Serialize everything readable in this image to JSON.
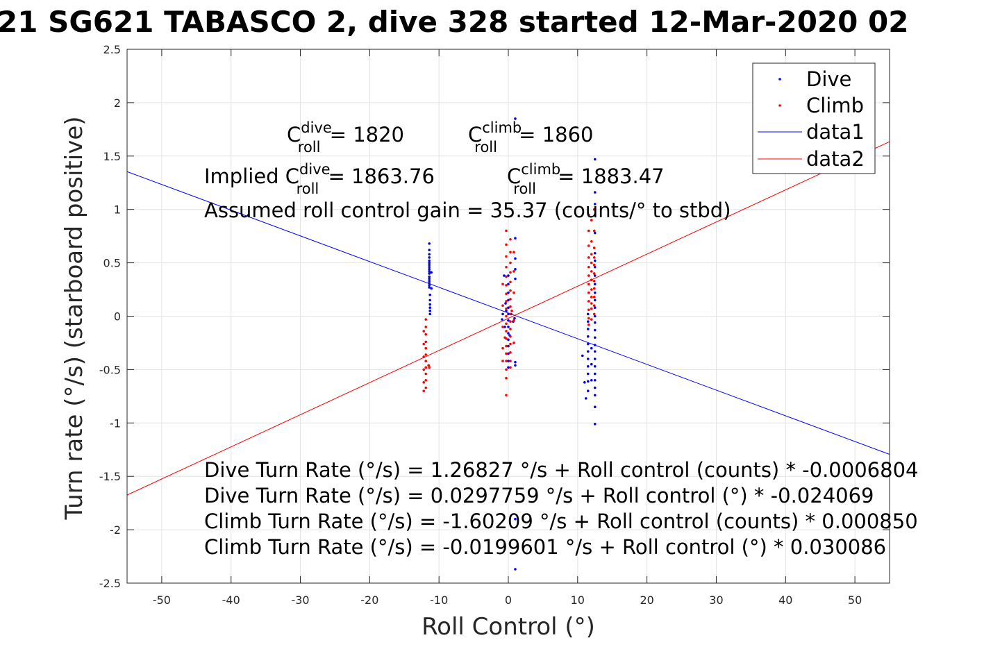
{
  "chart_data": {
    "type": "scatter",
    "title": "21 SG621 TABASCO 2, dive 328 started 12-Mar-2020 02",
    "xlabel": "Roll Control (°)",
    "ylabel": "Turn rate (°/s) (starboard positive)",
    "xlim": [
      -55,
      55
    ],
    "ylim": [
      -2.5,
      2.5
    ],
    "xticks": [
      -50,
      -40,
      -30,
      -20,
      -10,
      0,
      10,
      20,
      30,
      40,
      50
    ],
    "yticks": [
      -2.5,
      -2,
      -1.5,
      -1,
      -0.5,
      0,
      0.5,
      1,
      1.5,
      2,
      2.5
    ],
    "xtick_labels": [
      "-50",
      "-40",
      "-30",
      "-20",
      "-10",
      "0",
      "10",
      "20",
      "30",
      "40",
      "50"
    ],
    "ytick_labels": [
      "-2.5",
      "-2",
      "-1.5",
      "-1",
      "-0.5",
      "0",
      "0.5",
      "1",
      "1.5",
      "2",
      "2.5"
    ],
    "grid": true,
    "legend_position": "top-right",
    "series": [
      {
        "name": "Dive",
        "kind": "points",
        "color": "#0000ff",
        "points": [
          [
            -11.4,
            0.68
          ],
          [
            -11.4,
            0.62
          ],
          [
            -11.4,
            0.58
          ],
          [
            -11.4,
            0.55
          ],
          [
            -11.4,
            0.52
          ],
          [
            -11.4,
            0.5
          ],
          [
            -11.4,
            0.48
          ],
          [
            -11.4,
            0.46
          ],
          [
            -11.4,
            0.44
          ],
          [
            -11.4,
            0.42
          ],
          [
            -11.4,
            0.4
          ],
          [
            -11.4,
            0.37
          ],
          [
            -11.4,
            0.35
          ],
          [
            -11.4,
            0.33
          ],
          [
            -11.4,
            0.31
          ],
          [
            -11.4,
            0.29
          ],
          [
            -11.4,
            0.27
          ],
          [
            -11.1,
            0.41
          ],
          [
            -11.1,
            0.26
          ],
          [
            -11.3,
            0.2
          ],
          [
            -11.3,
            0.15
          ],
          [
            -11.3,
            0.11
          ],
          [
            -11.3,
            0.08
          ],
          [
            -11.3,
            0.05
          ],
          [
            -11.3,
            0.02
          ],
          [
            0.0,
            0.38
          ],
          [
            0.0,
            0.3
          ],
          [
            0.0,
            0.22
          ],
          [
            0.0,
            0.15
          ],
          [
            0.0,
            0.08
          ],
          [
            0.0,
            0.02
          ],
          [
            0.0,
            -0.04
          ],
          [
            0.0,
            -0.1
          ],
          [
            0.0,
            -0.16
          ],
          [
            0.0,
            -0.22
          ],
          [
            0.0,
            -0.28
          ],
          [
            0.0,
            -0.35
          ],
          [
            0.0,
            -0.42
          ],
          [
            0.0,
            -0.48
          ],
          [
            -0.6,
            0.38
          ],
          [
            -0.4,
            0.12
          ],
          [
            -0.8,
            0.02
          ],
          [
            -0.9,
            -0.03
          ],
          [
            -0.5,
            -0.1
          ],
          [
            -0.3,
            0.05
          ],
          [
            0.4,
            0.02
          ],
          [
            0.7,
            -0.05
          ],
          [
            0.2,
            -0.18
          ],
          [
            1.0,
            1.85
          ],
          [
            1.0,
            0.73
          ],
          [
            1.0,
            0.54
          ],
          [
            1.0,
            0.44
          ],
          [
            1.0,
            0.35
          ],
          [
            0.9,
            -0.02
          ],
          [
            1.0,
            -0.43
          ],
          [
            1.0,
            -0.46
          ],
          [
            1.0,
            -1.9
          ],
          [
            1.0,
            -2.37
          ],
          [
            12.5,
            1.47
          ],
          [
            12.5,
            1.16
          ],
          [
            12.5,
            1.05
          ],
          [
            12.5,
            0.95
          ],
          [
            12.5,
            0.78
          ],
          [
            12.5,
            0.59
          ],
          [
            12.5,
            0.52
          ],
          [
            12.5,
            0.46
          ],
          [
            12.5,
            0.38
          ],
          [
            12.5,
            0.3
          ],
          [
            12.5,
            0.22
          ],
          [
            12.5,
            0.15
          ],
          [
            12.5,
            0.08
          ],
          [
            12.5,
            0.0
          ],
          [
            12.5,
            -0.06
          ],
          [
            12.5,
            -0.13
          ],
          [
            12.5,
            -0.2
          ],
          [
            12.5,
            -0.27
          ],
          [
            12.5,
            -0.33
          ],
          [
            12.5,
            -0.4
          ],
          [
            12.5,
            -0.47
          ],
          [
            12.5,
            -0.54
          ],
          [
            12.5,
            -0.6
          ],
          [
            12.5,
            -0.67
          ],
          [
            12.5,
            -0.74
          ],
          [
            12.5,
            -0.85
          ],
          [
            12.5,
            -1.01
          ],
          [
            11.5,
            0.02
          ],
          [
            11.5,
            -0.05
          ],
          [
            11.5,
            -0.12
          ],
          [
            11.5,
            -0.19
          ],
          [
            11.5,
            -0.26
          ],
          [
            11.5,
            -0.33
          ],
          [
            11.5,
            -0.4
          ],
          [
            11.5,
            -0.47
          ],
          [
            11.5,
            -0.54
          ],
          [
            11.5,
            -0.61
          ],
          [
            11.5,
            -0.7
          ],
          [
            12.0,
            -0.3
          ],
          [
            12.0,
            -0.45
          ],
          [
            12.0,
            -0.6
          ],
          [
            10.7,
            -0.37
          ],
          [
            11.0,
            -0.62
          ],
          [
            11.2,
            -0.77
          ]
        ]
      },
      {
        "name": "Climb",
        "kind": "points",
        "color": "#ff0000",
        "points": [
          [
            -11.9,
            -0.03
          ],
          [
            -11.9,
            -0.1
          ],
          [
            -11.9,
            -0.17
          ],
          [
            -11.9,
            -0.24
          ],
          [
            -11.9,
            -0.3
          ],
          [
            -11.9,
            -0.36
          ],
          [
            -11.9,
            -0.42
          ],
          [
            -11.9,
            -0.48
          ],
          [
            -11.9,
            -0.54
          ],
          [
            -11.9,
            -0.6
          ],
          [
            -11.9,
            -0.67
          ],
          [
            -12.2,
            -0.14
          ],
          [
            -12.2,
            -0.26
          ],
          [
            -12.2,
            -0.38
          ],
          [
            -12.2,
            -0.5
          ],
          [
            -12.2,
            -0.62
          ],
          [
            -12.2,
            -0.7
          ],
          [
            -11.5,
            -0.46
          ],
          [
            -11.4,
            -0.48
          ],
          [
            -0.3,
            0.8
          ],
          [
            -0.3,
            0.67
          ],
          [
            -0.3,
            0.56
          ],
          [
            -0.3,
            0.46
          ],
          [
            -0.3,
            0.37
          ],
          [
            -0.3,
            0.29
          ],
          [
            -0.3,
            0.21
          ],
          [
            -0.3,
            0.14
          ],
          [
            -0.3,
            0.07
          ],
          [
            -0.3,
            0.0
          ],
          [
            -0.3,
            -0.07
          ],
          [
            -0.3,
            -0.14
          ],
          [
            -0.3,
            -0.21
          ],
          [
            -0.3,
            -0.28
          ],
          [
            -0.3,
            -0.35
          ],
          [
            -0.3,
            -0.42
          ],
          [
            -0.3,
            -0.5
          ],
          [
            -0.3,
            -0.58
          ],
          [
            -0.3,
            -0.74
          ],
          [
            0.3,
            0.72
          ],
          [
            0.3,
            0.6
          ],
          [
            0.3,
            0.5
          ],
          [
            0.3,
            0.41
          ],
          [
            0.3,
            0.32
          ],
          [
            0.3,
            0.24
          ],
          [
            0.3,
            0.16
          ],
          [
            0.3,
            0.09
          ],
          [
            0.3,
            0.02
          ],
          [
            0.3,
            -0.05
          ],
          [
            0.3,
            -0.12
          ],
          [
            0.3,
            -0.19
          ],
          [
            0.3,
            -0.26
          ],
          [
            0.3,
            -0.34
          ],
          [
            0.3,
            -0.42
          ],
          [
            0.3,
            -0.48
          ],
          [
            -0.8,
            0.3
          ],
          [
            -0.8,
            0.1
          ],
          [
            -0.8,
            -0.1
          ],
          [
            -0.8,
            -0.3
          ],
          [
            -0.8,
            -0.42
          ],
          [
            0.8,
            0.6
          ],
          [
            0.8,
            0.42
          ],
          [
            0.8,
            0.22
          ],
          [
            0.8,
            -0.04
          ],
          [
            0.8,
            -0.25
          ],
          [
            -0.5,
            -0.2
          ],
          [
            0.5,
            0.05
          ],
          [
            11.6,
            0.95
          ],
          [
            11.6,
            0.8
          ],
          [
            11.6,
            0.66
          ],
          [
            11.6,
            0.55
          ],
          [
            11.6,
            0.46
          ],
          [
            11.6,
            0.38
          ],
          [
            11.6,
            0.3
          ],
          [
            11.6,
            0.22
          ],
          [
            11.6,
            0.14
          ],
          [
            11.6,
            0.06
          ],
          [
            11.6,
            -0.02
          ],
          [
            11.6,
            -0.08
          ],
          [
            12.0,
            0.9
          ],
          [
            12.0,
            0.7
          ],
          [
            12.0,
            0.58
          ],
          [
            12.0,
            0.5
          ],
          [
            12.0,
            0.42
          ],
          [
            12.0,
            0.34
          ],
          [
            12.0,
            0.25
          ],
          [
            12.0,
            0.18
          ],
          [
            12.0,
            0.12
          ],
          [
            12.0,
            0.07
          ],
          [
            12.0,
            -0.03
          ],
          [
            12.4,
            1.0
          ],
          [
            12.4,
            0.8
          ],
          [
            12.4,
            0.64
          ],
          [
            12.4,
            0.55
          ],
          [
            12.4,
            0.48
          ],
          [
            12.4,
            0.4
          ],
          [
            12.4,
            0.33
          ],
          [
            12.4,
            0.26
          ],
          [
            12.4,
            0.18
          ],
          [
            12.4,
            0.1
          ],
          [
            12.4,
            0.02
          ]
        ]
      },
      {
        "name": "data1",
        "kind": "line",
        "color": "#0000ff",
        "points": [
          [
            -55,
            1.354
          ],
          [
            55,
            -1.294
          ]
        ]
      },
      {
        "name": "data2",
        "kind": "line",
        "color": "#ff0000",
        "points": [
          [
            -55,
            -1.675
          ],
          [
            55,
            1.635
          ]
        ]
      }
    ],
    "annotations": {
      "c_dive": {
        "pre": "C",
        "sup": "dive",
        "sub": "roll",
        "post": " = 1820"
      },
      "c_climb": {
        "pre": "C",
        "sup": "climb",
        "sub": "roll",
        "post": " = 1860"
      },
      "implied_dive": {
        "pre": "Implied C",
        "sup": "dive",
        "sub": "roll",
        "post": " = 1863.76"
      },
      "implied_climb": {
        "pre": "C",
        "sup": "climb",
        "sub": "roll",
        "post": " = 1883.47"
      },
      "gain": "Assumed roll control gain = 35.37 (counts/° to stbd)",
      "eq1": "Dive Turn Rate (°/s) = 1.26827 °/s + Roll control (counts) * -0.0006804",
      "eq2": "Dive Turn Rate (°/s) = 0.0297759 °/s + Roll control (°) * -0.024069",
      "eq3": "Climb Turn Rate (°/s) = -1.60209 °/s + Roll control (counts) * 0.000850",
      "eq4": "Climb Turn Rate (°/s) = -0.0199601 °/s + Roll control (°) * 0.030086"
    }
  }
}
